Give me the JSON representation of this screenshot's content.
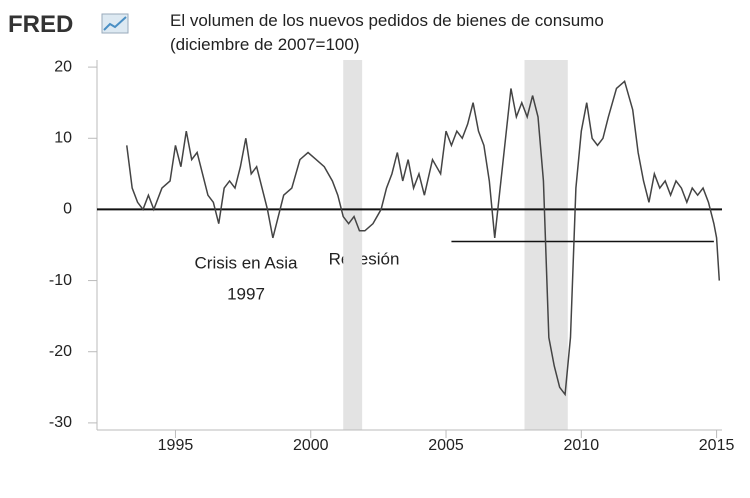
{
  "chart_data": {
    "type": "line",
    "logo": "FRED",
    "title": "El volumen de los nuevos pedidos de bienes de consumo",
    "subtitle": "(diciembre de 2007=100)",
    "annotations": [
      "Crisis en Asia",
      "1997",
      "Recesión"
    ],
    "x": [
      1993.2,
      1993.4,
      1993.6,
      1993.8,
      1994.0,
      1994.2,
      1994.5,
      1994.8,
      1995.0,
      1995.2,
      1995.4,
      1995.6,
      1995.8,
      1996.0,
      1996.2,
      1996.4,
      1996.6,
      1996.8,
      1997.0,
      1997.2,
      1997.4,
      1997.6,
      1997.8,
      1998.0,
      1998.2,
      1998.4,
      1998.6,
      1998.8,
      1999.0,
      1999.3,
      1999.6,
      1999.9,
      2000.2,
      2000.5,
      2000.8,
      2001.0,
      2001.2,
      2001.4,
      2001.6,
      2001.8,
      2002.0,
      2002.3,
      2002.6,
      2002.8,
      2003.0,
      2003.2,
      2003.4,
      2003.6,
      2003.8,
      2004.0,
      2004.2,
      2004.5,
      2004.8,
      2005.0,
      2005.2,
      2005.4,
      2005.6,
      2005.8,
      2006.0,
      2006.2,
      2006.4,
      2006.6,
      2006.8,
      2007.0,
      2007.2,
      2007.4,
      2007.6,
      2007.8,
      2008.0,
      2008.2,
      2008.4,
      2008.6,
      2008.8,
      2009.0,
      2009.2,
      2009.4,
      2009.6,
      2009.8,
      2010.0,
      2010.2,
      2010.4,
      2010.6,
      2010.8,
      2011.0,
      2011.3,
      2011.6,
      2011.9,
      2012.1,
      2012.3,
      2012.5,
      2012.7,
      2012.9,
      2013.1,
      2013.3,
      2013.5,
      2013.7,
      2013.9,
      2014.1,
      2014.3,
      2014.5,
      2014.7,
      2014.9,
      2015.0,
      2015.1
    ],
    "series": [
      {
        "color": "#444444",
        "values": [
          9,
          3,
          1,
          0,
          2,
          0,
          3,
          4,
          9,
          6,
          11,
          7,
          8,
          5,
          2,
          1,
          -2,
          3,
          4,
          3,
          6,
          10,
          5,
          6,
          3,
          0,
          -4,
          -1,
          2,
          3,
          7,
          8,
          7,
          6,
          4,
          2,
          -1,
          -2,
          -1,
          -3,
          -3,
          -2,
          0,
          3,
          5,
          8,
          4,
          7,
          3,
          5,
          2,
          7,
          5,
          11,
          9,
          11,
          10,
          12,
          15,
          11,
          9,
          4,
          -4,
          3,
          10,
          17,
          13,
          15,
          13,
          16,
          13,
          4,
          -18,
          -22,
          -25,
          -26,
          -18,
          3,
          11,
          15,
          10,
          9,
          10,
          13,
          17,
          18,
          14,
          8,
          4,
          1,
          5,
          3,
          4,
          2,
          4,
          3,
          1,
          3,
          2,
          3,
          1,
          -2,
          -4,
          -10
        ]
      }
    ],
    "recessions": [
      [
        2001.2,
        2001.9
      ],
      [
        2007.9,
        2009.5
      ]
    ],
    "reference_line": {
      "y": -4.5,
      "x": [
        2005.2,
        2014.9
      ]
    },
    "xlim": [
      1992.1,
      2015.2
    ],
    "ylim": [
      -31,
      21
    ],
    "xticks": [
      1995,
      2000,
      2005,
      2010,
      2015
    ],
    "yticks": [
      -30,
      -20,
      -10,
      0,
      10,
      20
    ]
  }
}
